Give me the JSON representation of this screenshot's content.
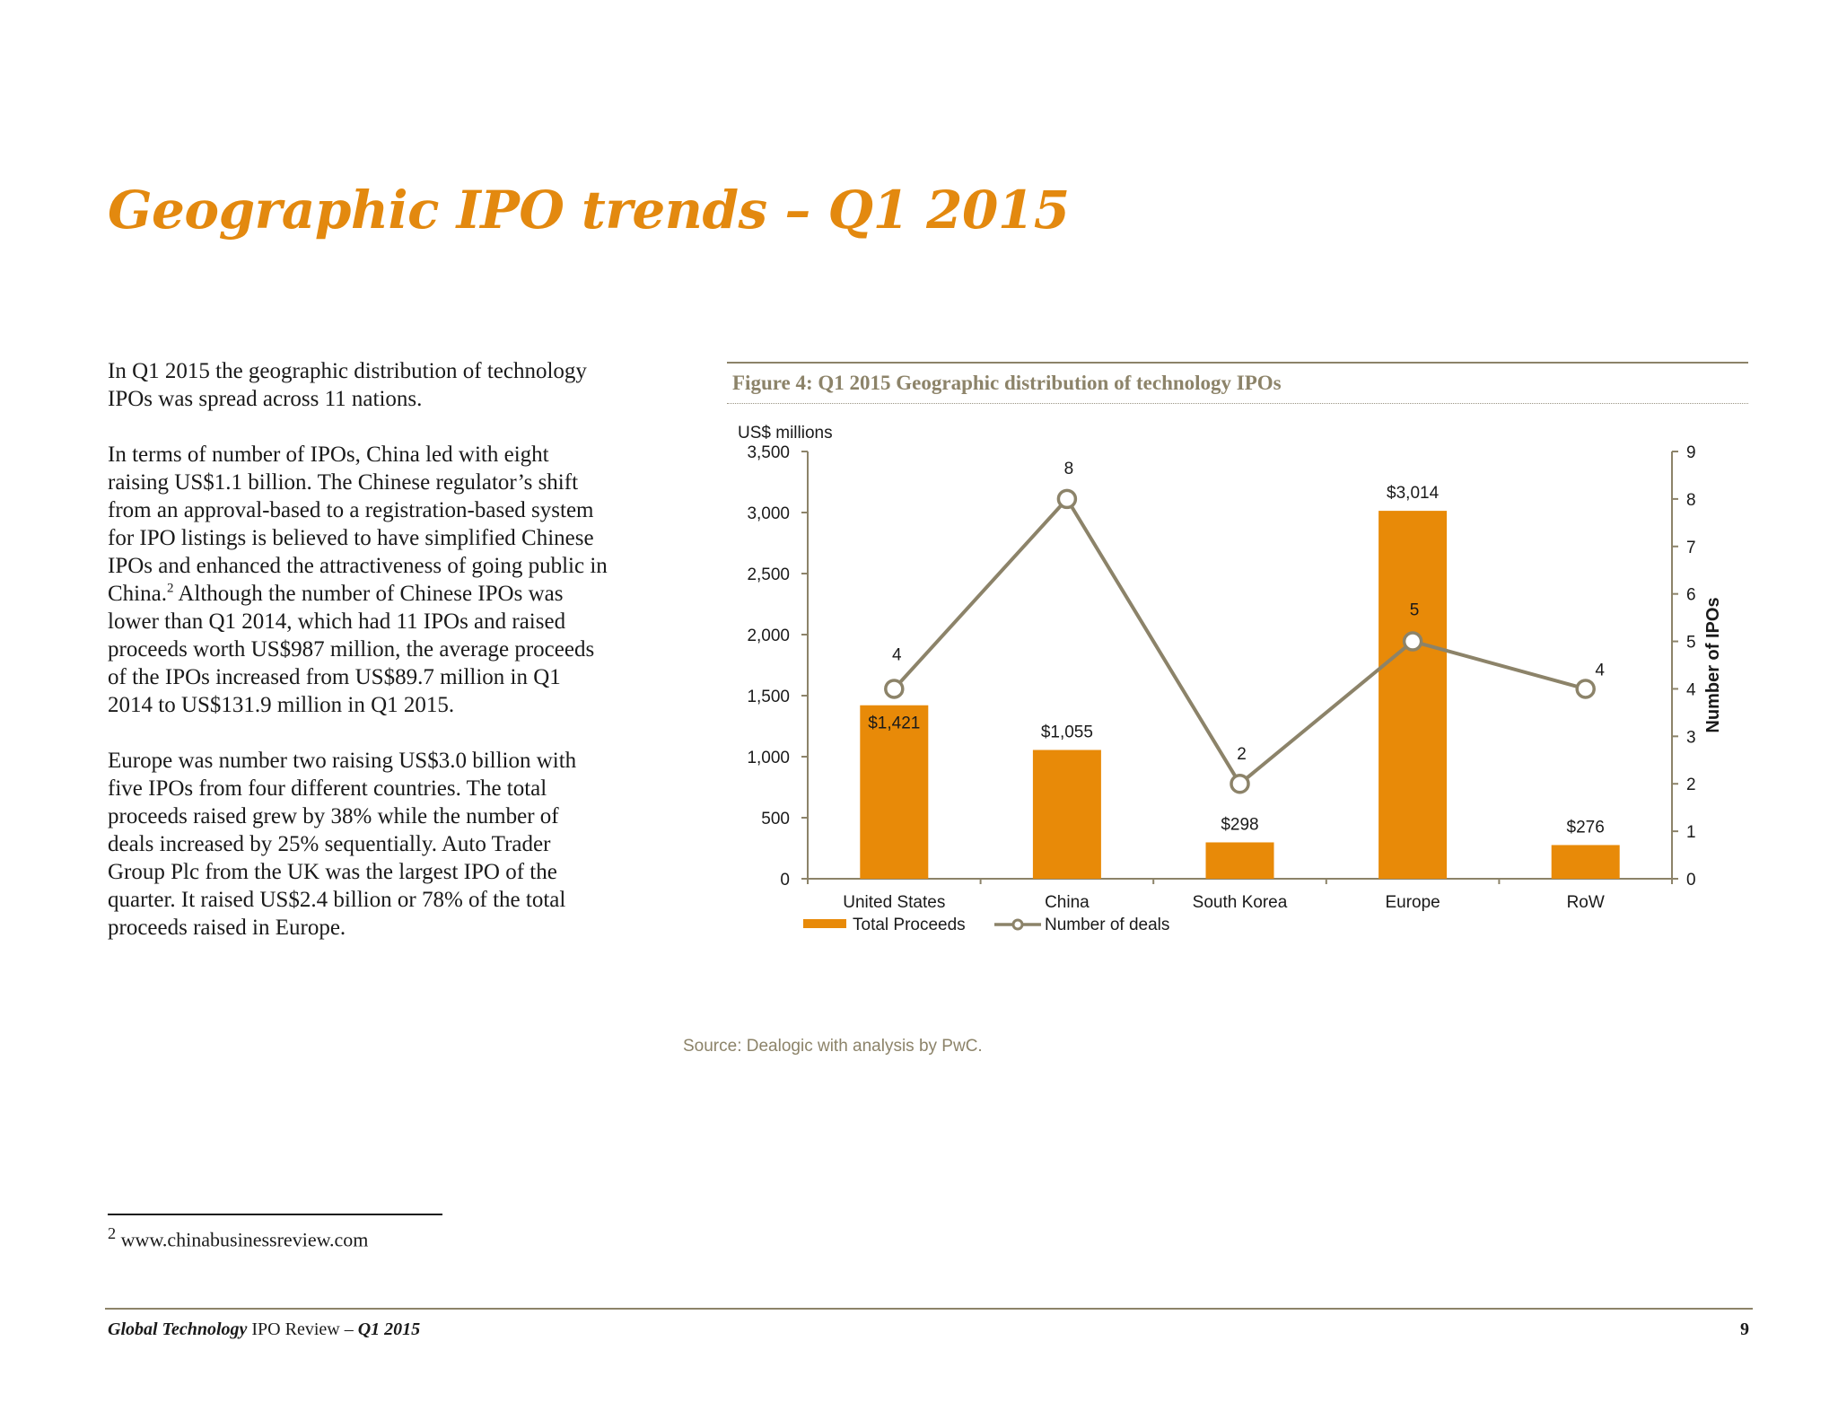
{
  "page": {
    "title": "Geographic IPO trends – Q1 2015"
  },
  "body": {
    "p1": "In Q1 2015 the geographic distribution of technology IPOs was spread across 11 nations.",
    "p2_before_ref": "In terms of number of IPOs, China led with eight raising US$1.1 billion. The Chinese regulator’s shift from an approval-based to a registration-based system for IPO listings is believed to have simplified Chinese IPOs and enhanced the attractiveness of going public in China.",
    "p2_ref": "2",
    "p2_after_ref": " Although the number of Chinese IPOs was lower than Q1 2014, which had 11 IPOs and raised proceeds worth US$987 million, the average proceeds of the IPOs increased from US$89.7 million in Q1 2014 to US$131.9 million in Q1 2015.",
    "p3": "Europe was number two raising US$3.0 billion with five IPOs from four different countries. The total proceeds raised grew by 38% while the number of deals increased by 25% sequentially. Auto Trader Group Plc from the UK was the largest IPO of the quarter. It raised US$2.4 billion or 78% of the total proceeds raised in Europe."
  },
  "figure": {
    "caption": "Figure 4: Q1 2015 Geographic distribution of technology IPOs",
    "source": "Source: Dealogic with analysis by PwC."
  },
  "chart_data": {
    "type": "bar",
    "categories": [
      "United States",
      "China",
      "South Korea",
      "Europe",
      "RoW"
    ],
    "series": [
      {
        "name": "Total Proceeds",
        "type": "bar",
        "axis": "left",
        "values": [
          1421,
          1055,
          298,
          3014,
          276
        ],
        "labels": [
          "$1,421",
          "$1,055",
          "$298",
          "$3,014",
          "$276"
        ],
        "color": "#e88a08"
      },
      {
        "name": "Number of deals",
        "type": "line",
        "axis": "right",
        "values": [
          4,
          8,
          2,
          5,
          4
        ],
        "labels": [
          "4",
          "8",
          "2",
          "5",
          "4"
        ],
        "color": "#8c8369"
      }
    ],
    "ylabel": "US$ millions",
    "y2label": "Number of IPOs",
    "ylim": [
      0,
      3500
    ],
    "y2lim": [
      0,
      9
    ],
    "yticks": [
      "0",
      "500",
      "1,000",
      "1,500",
      "2,000",
      "2,500",
      "3,000",
      "3,500"
    ],
    "y2ticks": [
      "0",
      "1",
      "2",
      "3",
      "4",
      "5",
      "6",
      "7",
      "8",
      "9"
    ],
    "legend_position": "bottom-left",
    "grid": false
  },
  "footnote": {
    "marker": "2",
    "text": " www.chinabusinessreview.com"
  },
  "footer": {
    "publication_bold": "Global Technology",
    "publication_rest": " IPO Review – ",
    "period": "Q1 2015",
    "page_number": "9"
  },
  "colors": {
    "title": "#e3890f",
    "bar": "#e88a08",
    "line": "#8c8369",
    "axis": "#8c8369",
    "caption": "#8c8369"
  }
}
